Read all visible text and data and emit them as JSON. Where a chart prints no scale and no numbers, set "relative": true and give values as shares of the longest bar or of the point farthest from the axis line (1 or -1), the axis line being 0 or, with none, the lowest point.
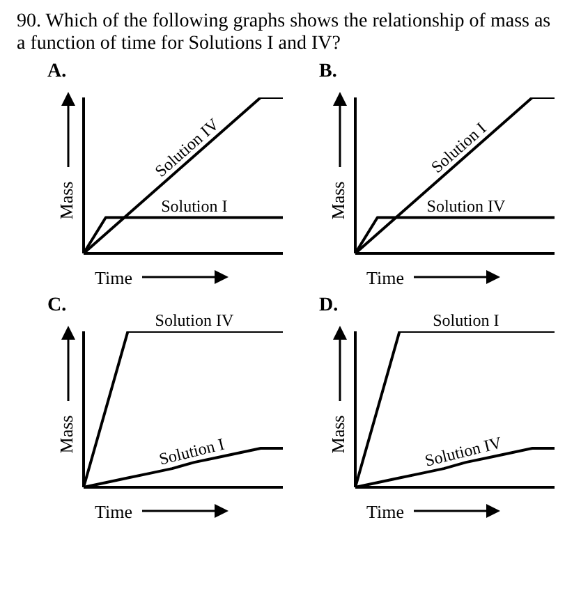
{
  "chart_data": [
    {
      "type": "line",
      "title": "A.",
      "annotations": [
        "90. Which of the following graphs shows the relationship of mass as a function of time for Solutions I and IV?"
      ],
      "xlabel": "Time",
      "ylabel": "Mass",
      "relative": true,
      "legend": false,
      "grid": false,
      "marker": "none",
      "categories": [
        null,
        null,
        null,
        null,
        null,
        null,
        null,
        null,
        null,
        null
      ],
      "series": [
        {
          "name": "Solution IV",
          "color": "#000000",
          "values": [
            0,
            0.125,
            0.25,
            0.375,
            0.5,
            0.625,
            0.75,
            0.875,
            1,
            1
          ]
        },
        {
          "name": "Solution I",
          "color": "#000000",
          "values": [
            0,
            0.23,
            0.23,
            0.23,
            0.23,
            0.23,
            0.23,
            0.23,
            0.23,
            0.23
          ]
        }
      ]
    },
    {
      "type": "line",
      "title": "B.",
      "xlabel": "Time",
      "ylabel": "Mass",
      "relative": true,
      "legend": false,
      "grid": false,
      "marker": "none",
      "categories": [
        null,
        null,
        null,
        null,
        null,
        null,
        null,
        null,
        null,
        null
      ],
      "series": [
        {
          "name": "Solution I",
          "color": "#000000",
          "values": [
            0,
            0.125,
            0.25,
            0.375,
            0.5,
            0.625,
            0.75,
            0.875,
            1,
            1
          ]
        },
        {
          "name": "Solution IV",
          "color": "#000000",
          "values": [
            0,
            0.23,
            0.23,
            0.23,
            0.23,
            0.23,
            0.23,
            0.23,
            0.23,
            0.23
          ]
        }
      ]
    },
    {
      "type": "line",
      "title": "C.",
      "xlabel": "Time",
      "ylabel": "Mass",
      "relative": true,
      "legend": false,
      "grid": false,
      "marker": "none",
      "categories": [
        null,
        null,
        null,
        null,
        null,
        null,
        null,
        null,
        null,
        null
      ],
      "series": [
        {
          "name": "Solution IV",
          "color": "#000000",
          "values": [
            0,
            0.5,
            1,
            1,
            1,
            1,
            1,
            1,
            1,
            1
          ]
        },
        {
          "name": "Solution I",
          "color": "#000000",
          "values": [
            0,
            0.03,
            0.06,
            0.09,
            0.12,
            0.16,
            0.19,
            0.22,
            0.25,
            0.25
          ]
        }
      ]
    },
    {
      "type": "line",
      "title": "D.",
      "xlabel": "Time",
      "ylabel": "Mass",
      "relative": true,
      "legend": false,
      "grid": false,
      "marker": "none",
      "categories": [
        null,
        null,
        null,
        null,
        null,
        null,
        null,
        null,
        null,
        null
      ],
      "series": [
        {
          "name": "Solution I",
          "color": "#000000",
          "values": [
            0,
            0.5,
            1,
            1,
            1,
            1,
            1,
            1,
            1,
            1
          ]
        },
        {
          "name": "Solution IV",
          "color": "#000000",
          "values": [
            0,
            0.03,
            0.06,
            0.09,
            0.12,
            0.16,
            0.19,
            0.22,
            0.25,
            0.25
          ]
        }
      ]
    }
  ]
}
